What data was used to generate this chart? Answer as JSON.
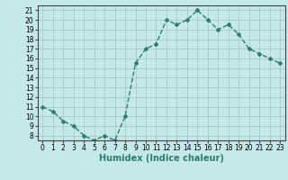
{
  "x": [
    0,
    1,
    2,
    3,
    4,
    5,
    6,
    7,
    8,
    9,
    10,
    11,
    12,
    13,
    14,
    15,
    16,
    17,
    18,
    19,
    20,
    21,
    22,
    23
  ],
  "y": [
    11.0,
    10.5,
    9.5,
    9.0,
    8.0,
    7.5,
    8.0,
    7.5,
    10.0,
    15.5,
    17.0,
    17.5,
    20.0,
    19.5,
    20.0,
    21.0,
    20.0,
    19.0,
    19.5,
    18.5,
    17.0,
    16.5,
    16.0,
    15.5
  ],
  "line_color": "#2e7d6e",
  "marker": "D",
  "marker_size": 2,
  "xlabel": "Humidex (Indice chaleur)",
  "xlabel_fontsize": 7,
  "xlim": [
    -0.5,
    23.5
  ],
  "ylim": [
    7.5,
    21.5
  ],
  "yticks": [
    8,
    9,
    10,
    11,
    12,
    13,
    14,
    15,
    16,
    17,
    18,
    19,
    20,
    21
  ],
  "xticks": [
    0,
    1,
    2,
    3,
    4,
    5,
    6,
    7,
    8,
    9,
    10,
    11,
    12,
    13,
    14,
    15,
    16,
    17,
    18,
    19,
    20,
    21,
    22,
    23
  ],
  "background_color": "#c5e8e8",
  "grid_color": "#9bbfbf",
  "tick_fontsize": 5.5,
  "linewidth": 1.0
}
